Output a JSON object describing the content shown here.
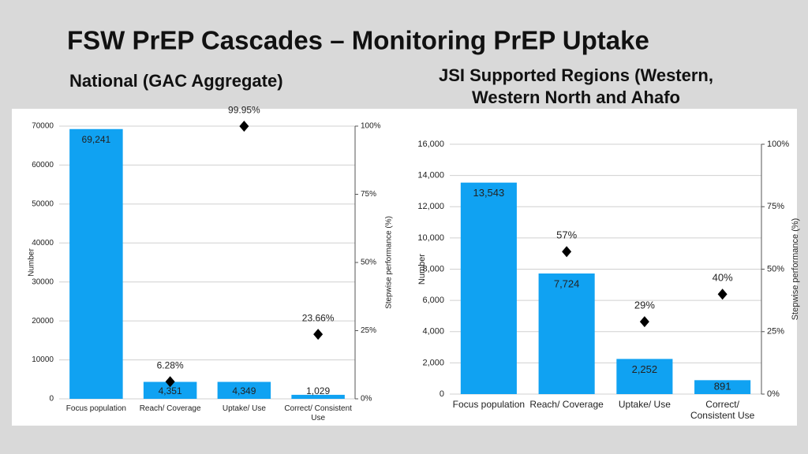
{
  "header": {
    "title": "FSW PrEP Cascades – Monitoring PrEP Uptake"
  },
  "chart_data": [
    {
      "type": "bar",
      "title": "National (GAC Aggregate)",
      "categories": [
        "Focus population",
        "Reach/ Coverage",
        "Uptake/ Use",
        "Correct/ Consistent Use"
      ],
      "y_label": "Number",
      "y2_label": "Stepwise performance (%)",
      "ylim": [
        0,
        70000
      ],
      "yticks": [
        0,
        10000,
        20000,
        30000,
        40000,
        50000,
        60000,
        70000
      ],
      "y2lim": [
        0,
        100
      ],
      "y2ticks": [
        {
          "value": 0,
          "label": "0%"
        },
        {
          "value": 25,
          "label": "25%"
        },
        {
          "value": 50,
          "label": "50%"
        },
        {
          "value": 75,
          "label": "75%"
        },
        {
          "value": 100,
          "label": "100%"
        }
      ],
      "grid": true,
      "series": [
        {
          "type": "bar",
          "color": "#10a2f2",
          "values": [
            69241,
            4351,
            4349,
            1029
          ],
          "value_labels": [
            "69,241",
            "4,351",
            "4,349",
            "1,029"
          ]
        },
        {
          "type": "scatter",
          "marker": "diamond",
          "axis": "y2",
          "color": "#000000",
          "values": [
            null,
            6.28,
            99.95,
            23.66
          ],
          "value_labels": [
            null,
            "6.28%",
            "99.95%",
            "23.66%"
          ]
        }
      ]
    },
    {
      "type": "bar",
      "title": "JSI Supported Regions (Western, Western North and Ahafo",
      "categories": [
        "Focus population",
        "Reach/ Coverage",
        "Uptake/ Use",
        "Correct/ Consistent Use"
      ],
      "y_label": "Number",
      "y2_label": "Stepwise performance (%)",
      "ylim": [
        0,
        16000
      ],
      "yticks": [
        0,
        {
          "value": 2000,
          "label": "2,000"
        },
        {
          "value": 4000,
          "label": "4,000"
        },
        {
          "value": 6000,
          "label": "6,000"
        },
        {
          "value": 8000,
          "label": "8,000"
        },
        {
          "value": 10000,
          "label": "10,000"
        },
        {
          "value": 12000,
          "label": "12,000"
        },
        {
          "value": 14000,
          "label": "14,000"
        },
        {
          "value": 16000,
          "label": "16,000"
        }
      ],
      "y2lim": [
        0,
        100
      ],
      "y2ticks": [
        {
          "value": 0,
          "label": "0%"
        },
        {
          "value": 25,
          "label": "25%"
        },
        {
          "value": 50,
          "label": "50%"
        },
        {
          "value": 75,
          "label": "75%"
        },
        {
          "value": 100,
          "label": "100%"
        }
      ],
      "grid": true,
      "series": [
        {
          "type": "bar",
          "color": "#10a2f2",
          "values": [
            13543,
            7724,
            2252,
            891
          ],
          "value_labels": [
            "13,543",
            "7,724",
            "2,252",
            "891"
          ]
        },
        {
          "type": "scatter",
          "marker": "diamond",
          "axis": "y2",
          "color": "#000000",
          "values": [
            null,
            57,
            29,
            40
          ],
          "value_labels": [
            null,
            "57%",
            "29%",
            "40%"
          ]
        }
      ]
    }
  ]
}
